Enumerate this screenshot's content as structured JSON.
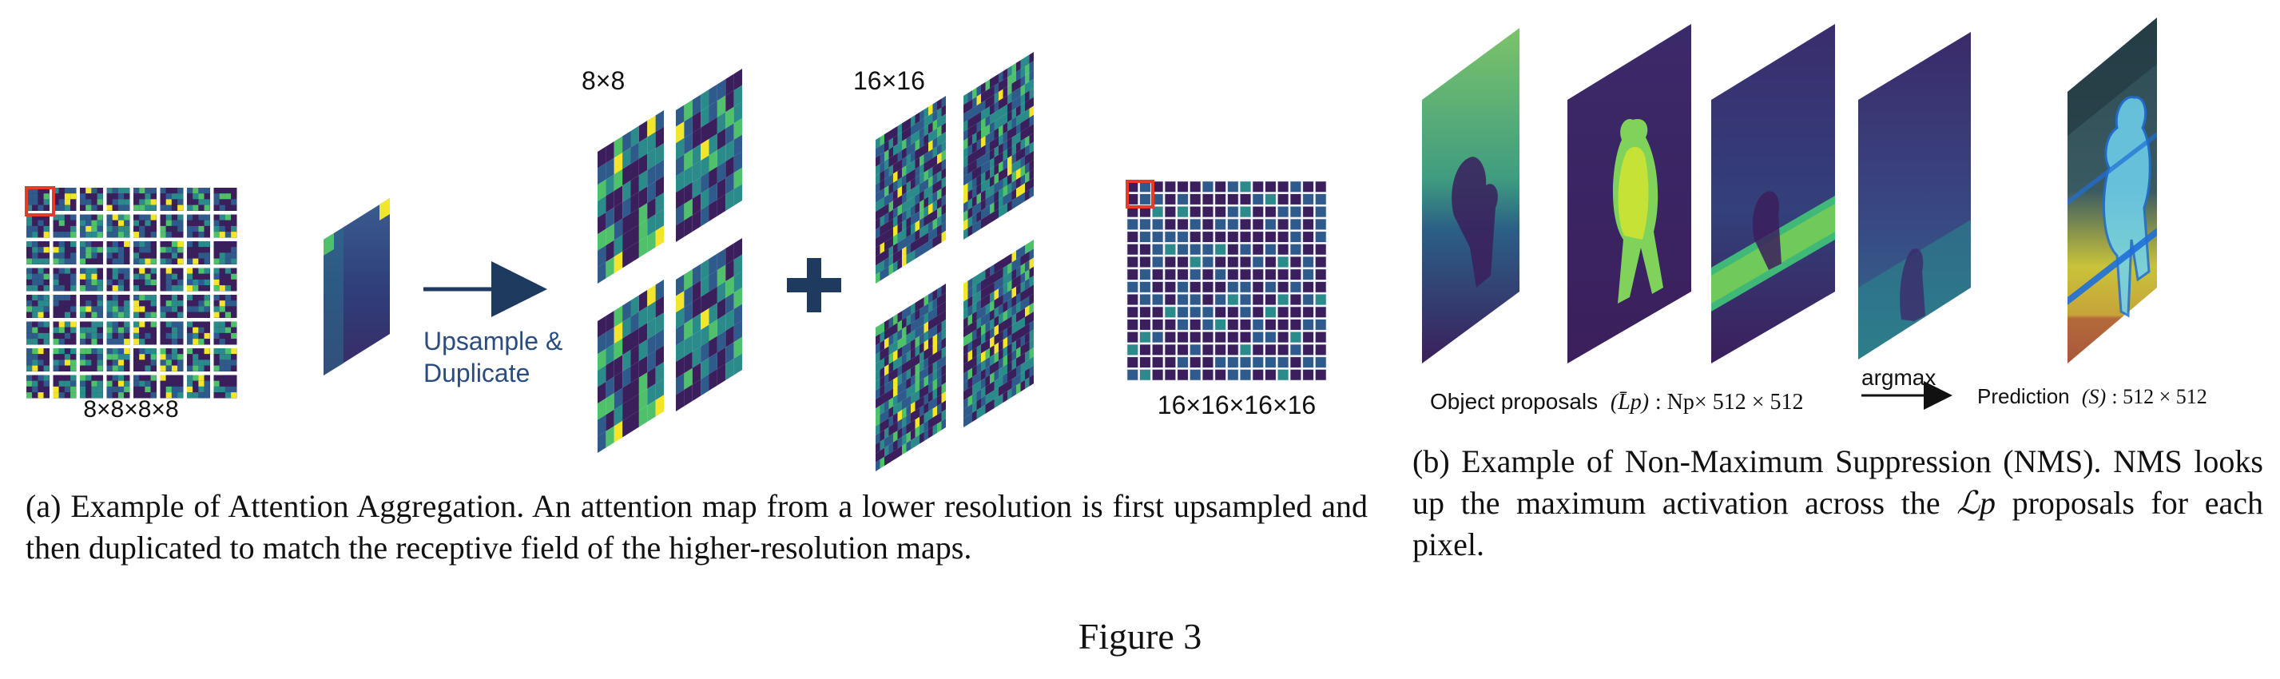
{
  "figure": {
    "title": "Figure 3"
  },
  "panel_a": {
    "label_grid_8": "8×8×8×8",
    "label_8x8": "8×8",
    "label_16x16": "16×16",
    "label_grid_16": "16×16×16×16",
    "upsample_line1": "Upsample &",
    "upsample_line2": "Duplicate",
    "caption": "(a) Example of Attention Aggregation.  An attention map from a lower resolution is first upsampled and then duplicated to match the receptive field of the higher-resolution maps."
  },
  "panel_b": {
    "proposals_label_prefix": "Object proposals",
    "proposals_symbol": "(L̄p)",
    "proposals_dims": ": Np× 512 × 512",
    "argmax_label": "argmax",
    "prediction_label_prefix": "Prediction",
    "prediction_symbol": "(S)",
    "prediction_dims": ": 512 × 512",
    "caption_part1": "(b) Example of Non-Maximum Suppression (NMS). NMS looks up the maximum activation across the ",
    "caption_symbol": "ℒp",
    "caption_part2": " proposals for each pixel."
  },
  "colors": {
    "viridis_dark": "#3b1f5c",
    "viridis_blue": "#2f5a8c",
    "viridis_teal": "#2a8b8a",
    "viridis_green": "#4fc16b",
    "viridis_yellow": "#f3e52a",
    "arrow_navy": "#1f3a5f",
    "highlight_red": "#e53b2c",
    "upsample_text": "#2b4c7e"
  }
}
